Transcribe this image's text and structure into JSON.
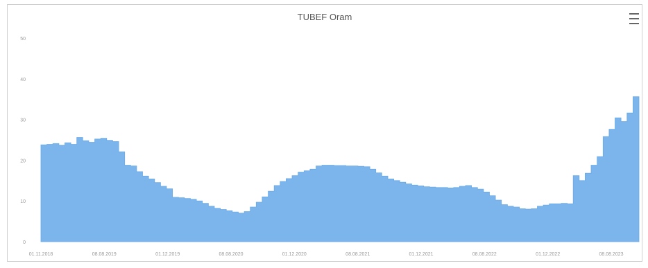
{
  "chart_data": {
    "type": "area",
    "title": "TUBEF Oram",
    "xlabel": "",
    "ylabel": "",
    "ylim": [
      0,
      50
    ],
    "y_ticks": [
      "0",
      "10",
      "20",
      "30",
      "40",
      "50"
    ],
    "x_ticks": [
      "01.11.2018",
      "08.08.2019",
      "01.12.2019",
      "08.08.2020",
      "01.12.2020",
      "08.08.2021",
      "01.12.2021",
      "08.08.2022",
      "01.12.2022",
      "08.08.2023"
    ],
    "grid": false,
    "legend": "none",
    "fill_color": "#7cb5ec",
    "series": [
      {
        "values": [
          23.8,
          23.9,
          24.1,
          23.7,
          24.3,
          23.9,
          25.6,
          24.8,
          24.4,
          25.2,
          25.4,
          24.9,
          24.6,
          22.1,
          18.8,
          18.6,
          17.2,
          16.1,
          15.4,
          14.5,
          13.6,
          13.0,
          10.9,
          10.8,
          10.6,
          10.4,
          10.0,
          9.4,
          8.7,
          8.2,
          7.9,
          7.6,
          7.3,
          7.0,
          7.4,
          8.5,
          9.7,
          11.0,
          12.4,
          13.8,
          14.8,
          15.5,
          16.2,
          17.1,
          17.4,
          17.8,
          18.6,
          18.8,
          18.8,
          18.7,
          18.7,
          18.6,
          18.6,
          18.5,
          18.4,
          17.8,
          16.9,
          16.1,
          15.4,
          15.0,
          14.6,
          14.2,
          13.9,
          13.7,
          13.5,
          13.4,
          13.3,
          13.3,
          13.2,
          13.3,
          13.6,
          13.8,
          13.3,
          12.9,
          12.2,
          11.3,
          10.2,
          9.1,
          8.7,
          8.5,
          8.1,
          8.0,
          8.1,
          8.7,
          9.0,
          9.3,
          9.3,
          9.4,
          9.3,
          16.2,
          15.0,
          16.8,
          18.8,
          20.9,
          25.8,
          27.6,
          30.4,
          29.5,
          31.6,
          35.6
        ]
      }
    ]
  }
}
